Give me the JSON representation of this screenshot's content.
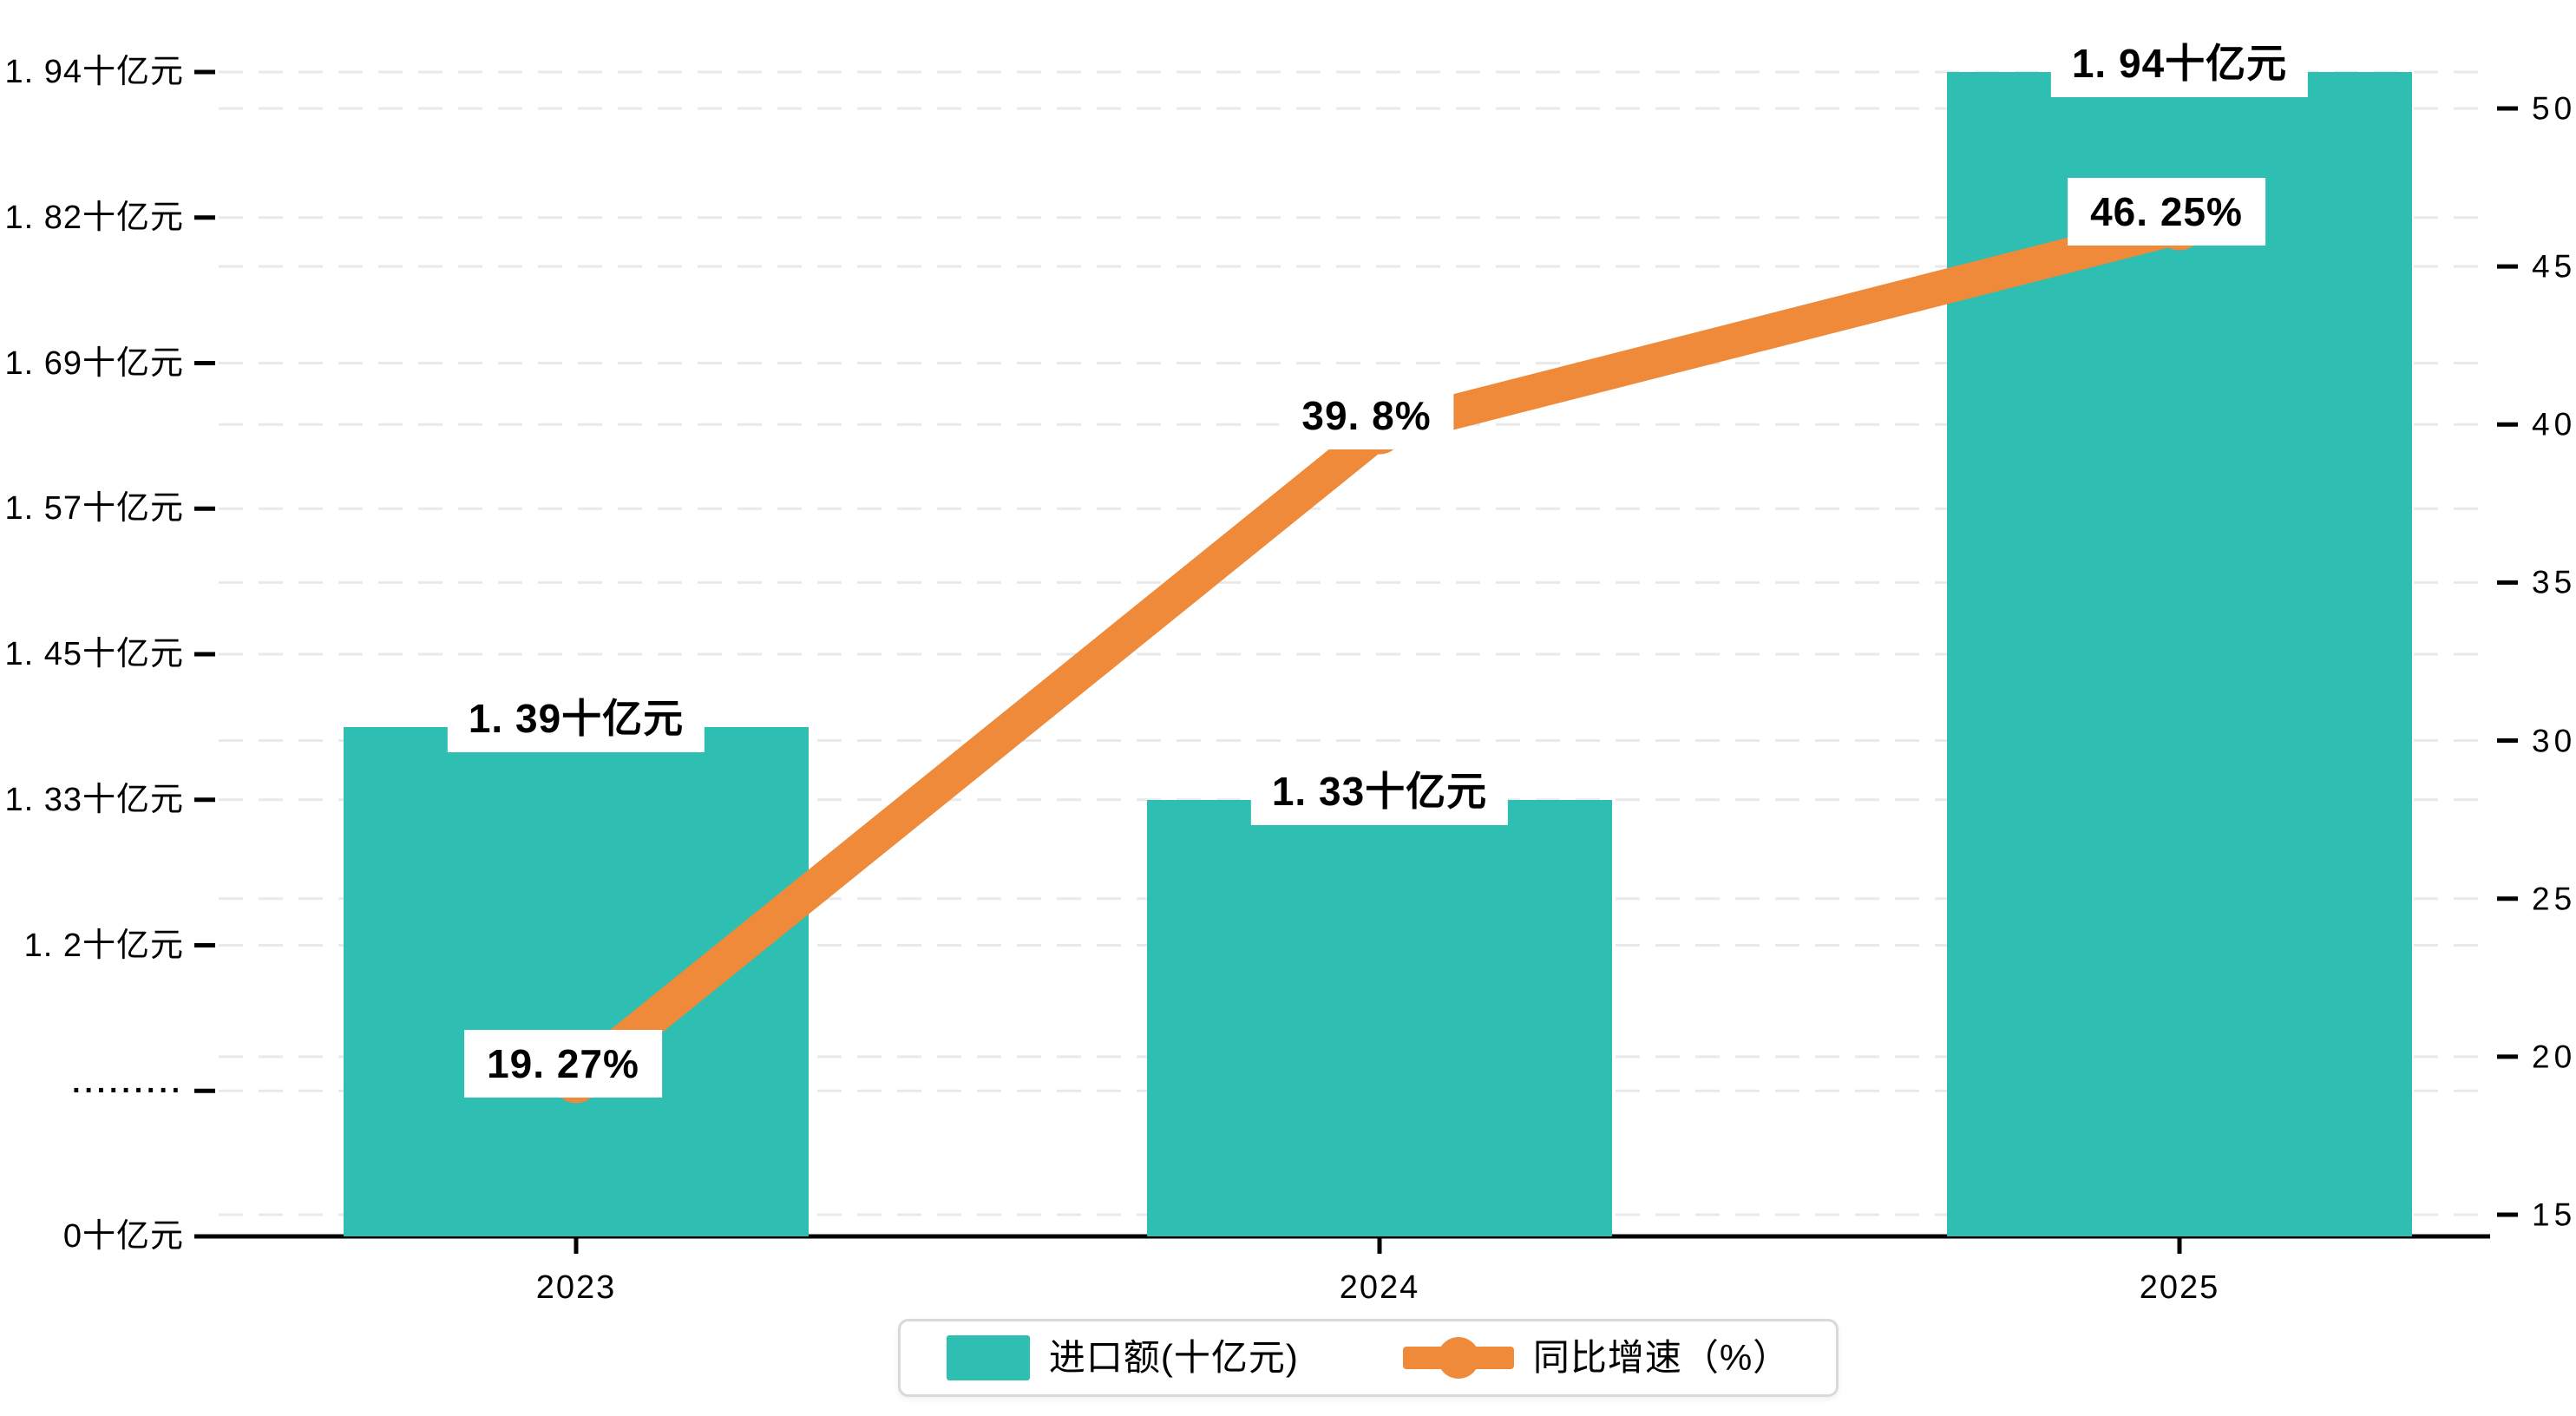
{
  "chart_data": {
    "type": "bar+line dual-axis combo",
    "categories": [
      "2023",
      "2024",
      "2025"
    ],
    "series": [
      {
        "name": "进口额(十亿元)",
        "type": "bar",
        "axis": "left",
        "color": "#2fbeb2",
        "values": [
          1.39,
          1.33,
          1.94
        ],
        "data_labels": [
          "1. 39十亿元",
          "1. 33十亿元",
          "1. 94十亿元"
        ]
      },
      {
        "name": "同比增速（%）",
        "type": "line",
        "axis": "right",
        "color": "#ee8a39",
        "values": [
          19.27,
          39.8,
          46.25
        ],
        "data_labels": [
          "19. 27%",
          "39. 8%",
          "46. 25%"
        ]
      }
    ],
    "left_axis": {
      "unit": "十亿元",
      "has_break": true,
      "tick_labels_top_to_bottom": [
        "1. 94十亿元",
        "1. 82十亿元",
        "1. 69十亿元",
        "1. 57十亿元",
        "1. 45十亿元",
        "1. 33十亿元",
        "1. 2十亿元",
        "·········",
        "0十亿元"
      ],
      "tick_values_top_to_bottom": [
        1.94,
        1.82,
        1.69,
        1.57,
        1.45,
        1.33,
        1.2,
        null,
        0
      ]
    },
    "right_axis": {
      "unit": "%",
      "tick_labels_top_to_bottom": [
        "50",
        "45",
        "40",
        "35",
        "30",
        "25",
        "20",
        "15"
      ],
      "tick_values_top_to_bottom": [
        50,
        45,
        40,
        35,
        30,
        25,
        20,
        15
      ],
      "range": [
        15,
        50
      ]
    },
    "legend": [
      {
        "label": "进口额(十亿元)",
        "marker": "square",
        "color": "#2fbeb2"
      },
      {
        "label": "同比增速（%）",
        "marker": "line-dot",
        "color": "#ee8a39"
      }
    ],
    "grid": {
      "style": "dashed",
      "color": "#e9e9e9"
    },
    "axis_line_color": "#000000"
  }
}
